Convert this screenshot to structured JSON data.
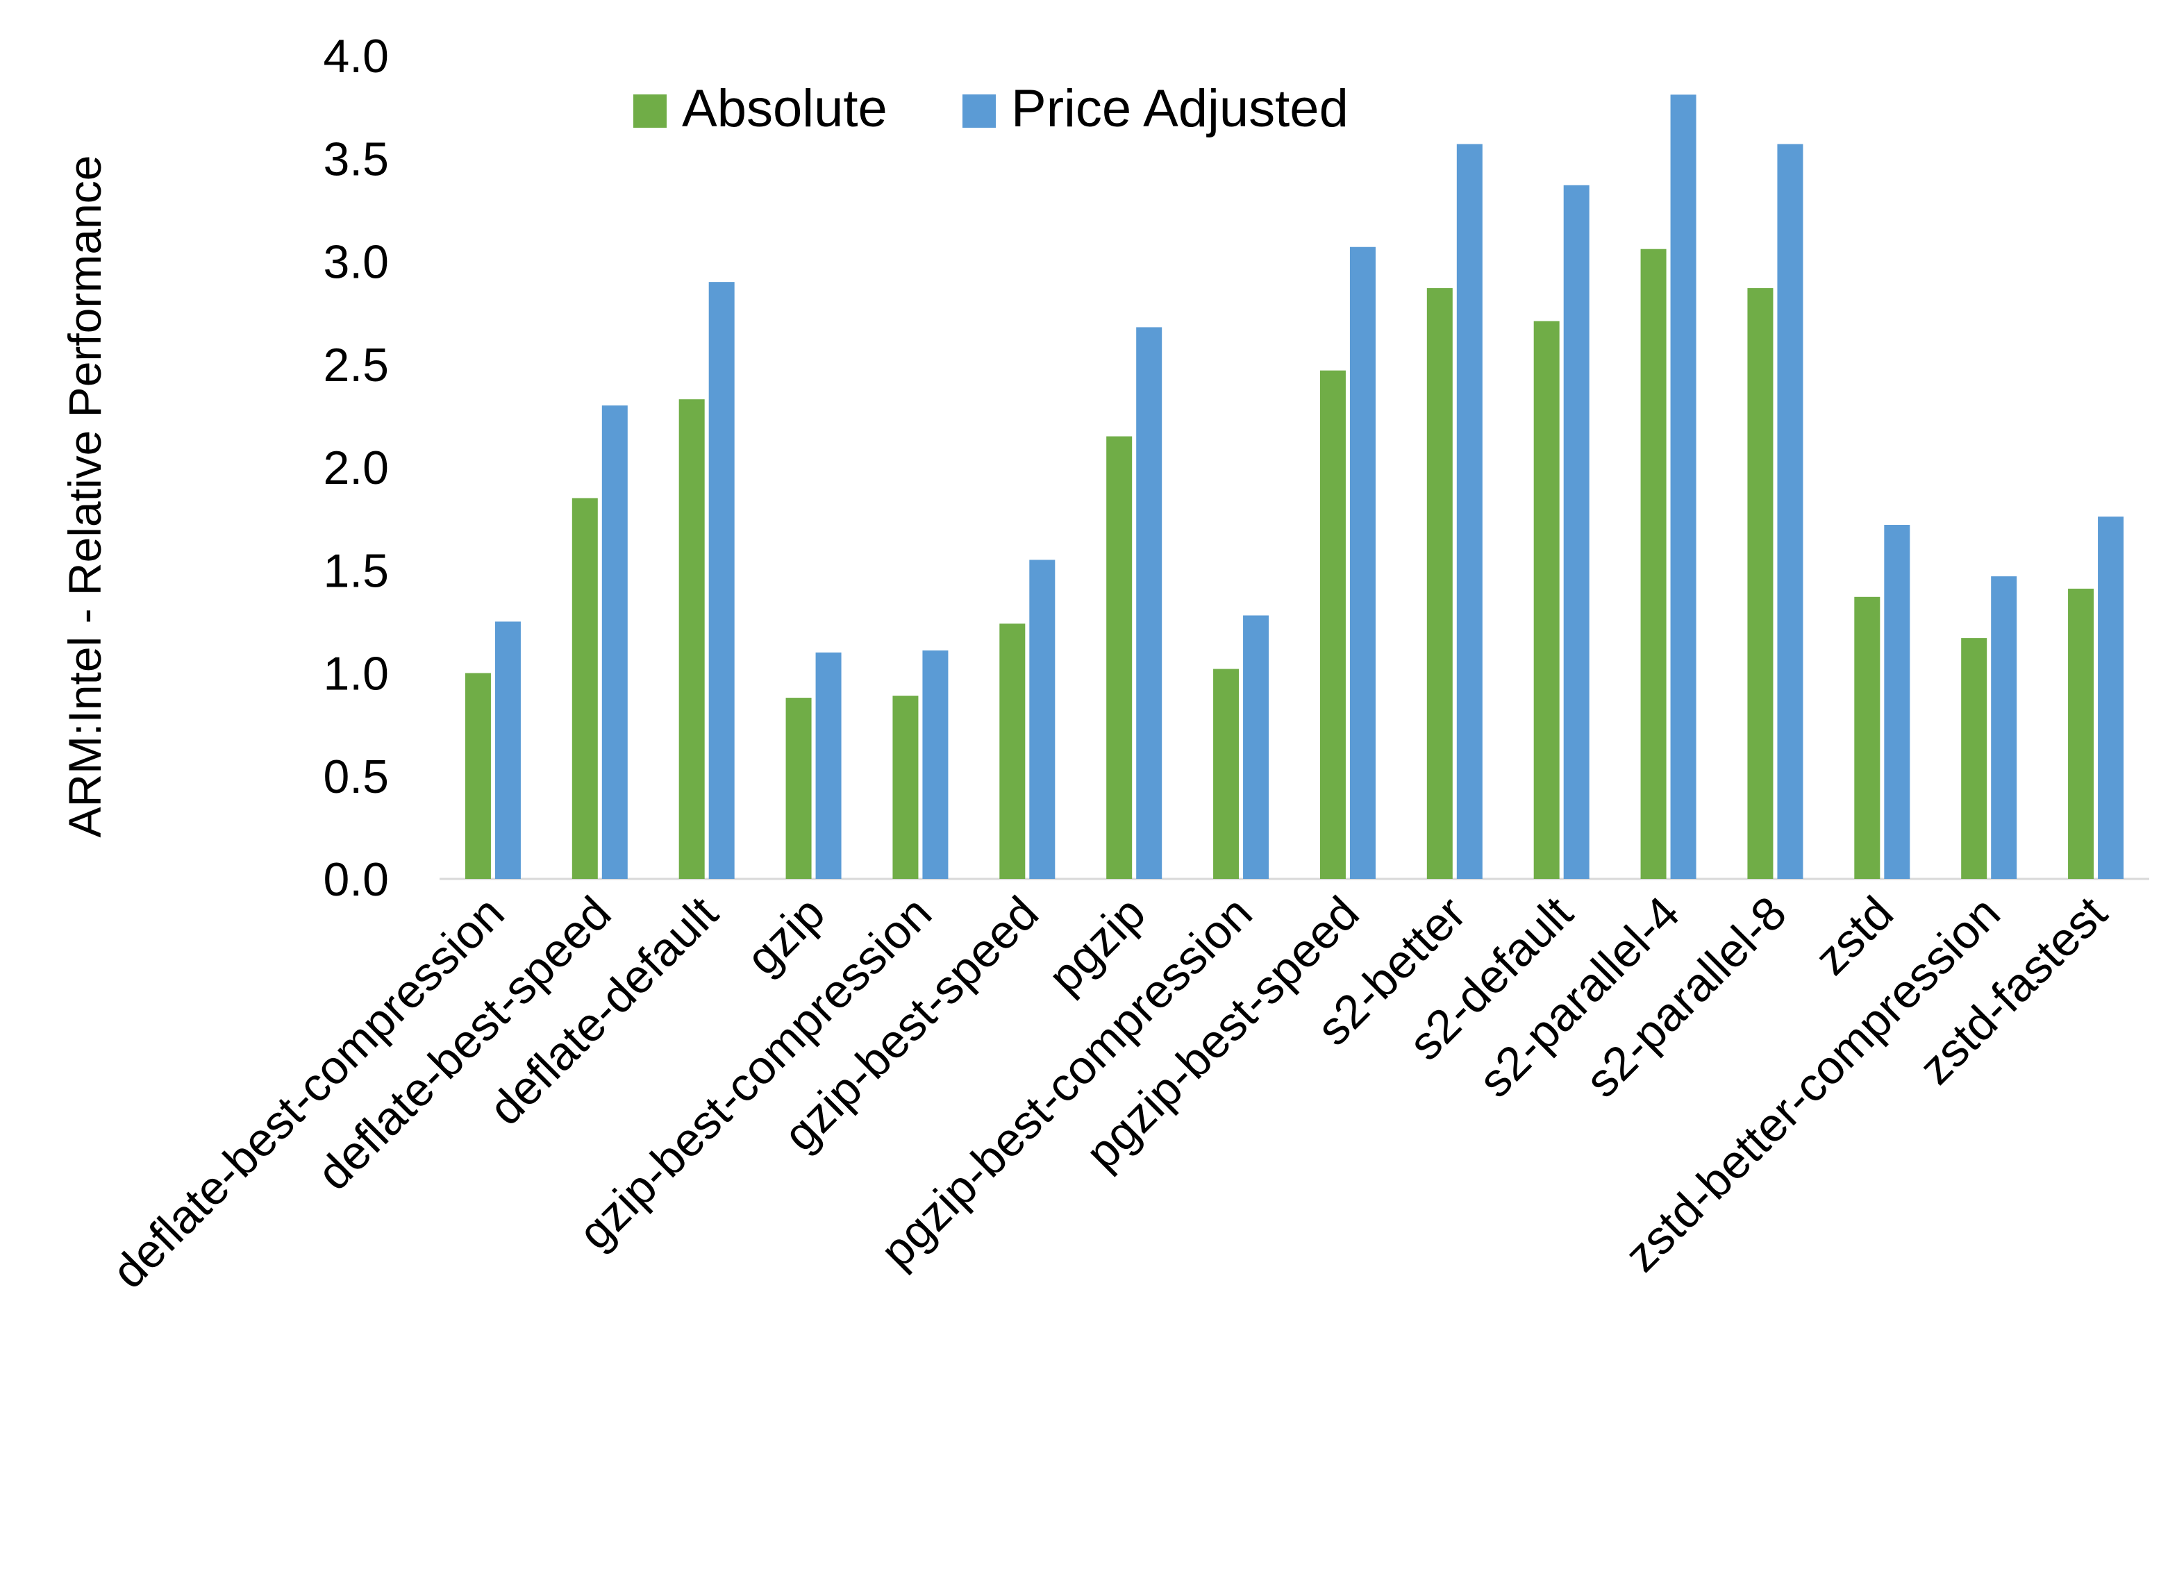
{
  "chart_data": {
    "type": "bar",
    "title": "",
    "xlabel": "",
    "ylabel": "ARM:Intel - Relative Performance",
    "ylim": [
      0,
      4
    ],
    "yticks": [
      "0.0",
      "0.5",
      "1.0",
      "1.5",
      "2.0",
      "2.5",
      "3.0",
      "3.5",
      "4.0"
    ],
    "grid": false,
    "legend_position": "top",
    "categories": [
      "deflate-best-compression",
      "deflate-best-speed",
      "deflate-default",
      "gzip",
      "gzip-best-compression",
      "gzip-best-speed",
      "pgzip",
      "pgzip-best-compression",
      "pgzip-best-speed",
      "s2-better",
      "s2-default",
      "s2-parallel-4",
      "s2-parallel-8",
      "zstd",
      "zstd-better-compression",
      "zstd-fastest"
    ],
    "series": [
      {
        "name": "Absolute",
        "color": "#70AD47",
        "values": [
          1.0,
          1.85,
          2.33,
          0.88,
          0.89,
          1.24,
          2.15,
          1.02,
          2.47,
          2.87,
          2.71,
          3.06,
          2.87,
          1.37,
          1.17,
          1.41
        ]
      },
      {
        "name": "Price Adjusted",
        "color": "#5B9BD5",
        "values": [
          1.25,
          2.3,
          2.9,
          1.1,
          1.11,
          1.55,
          2.68,
          1.28,
          3.07,
          3.57,
          3.37,
          3.81,
          3.57,
          1.72,
          1.47,
          1.76
        ]
      }
    ]
  }
}
